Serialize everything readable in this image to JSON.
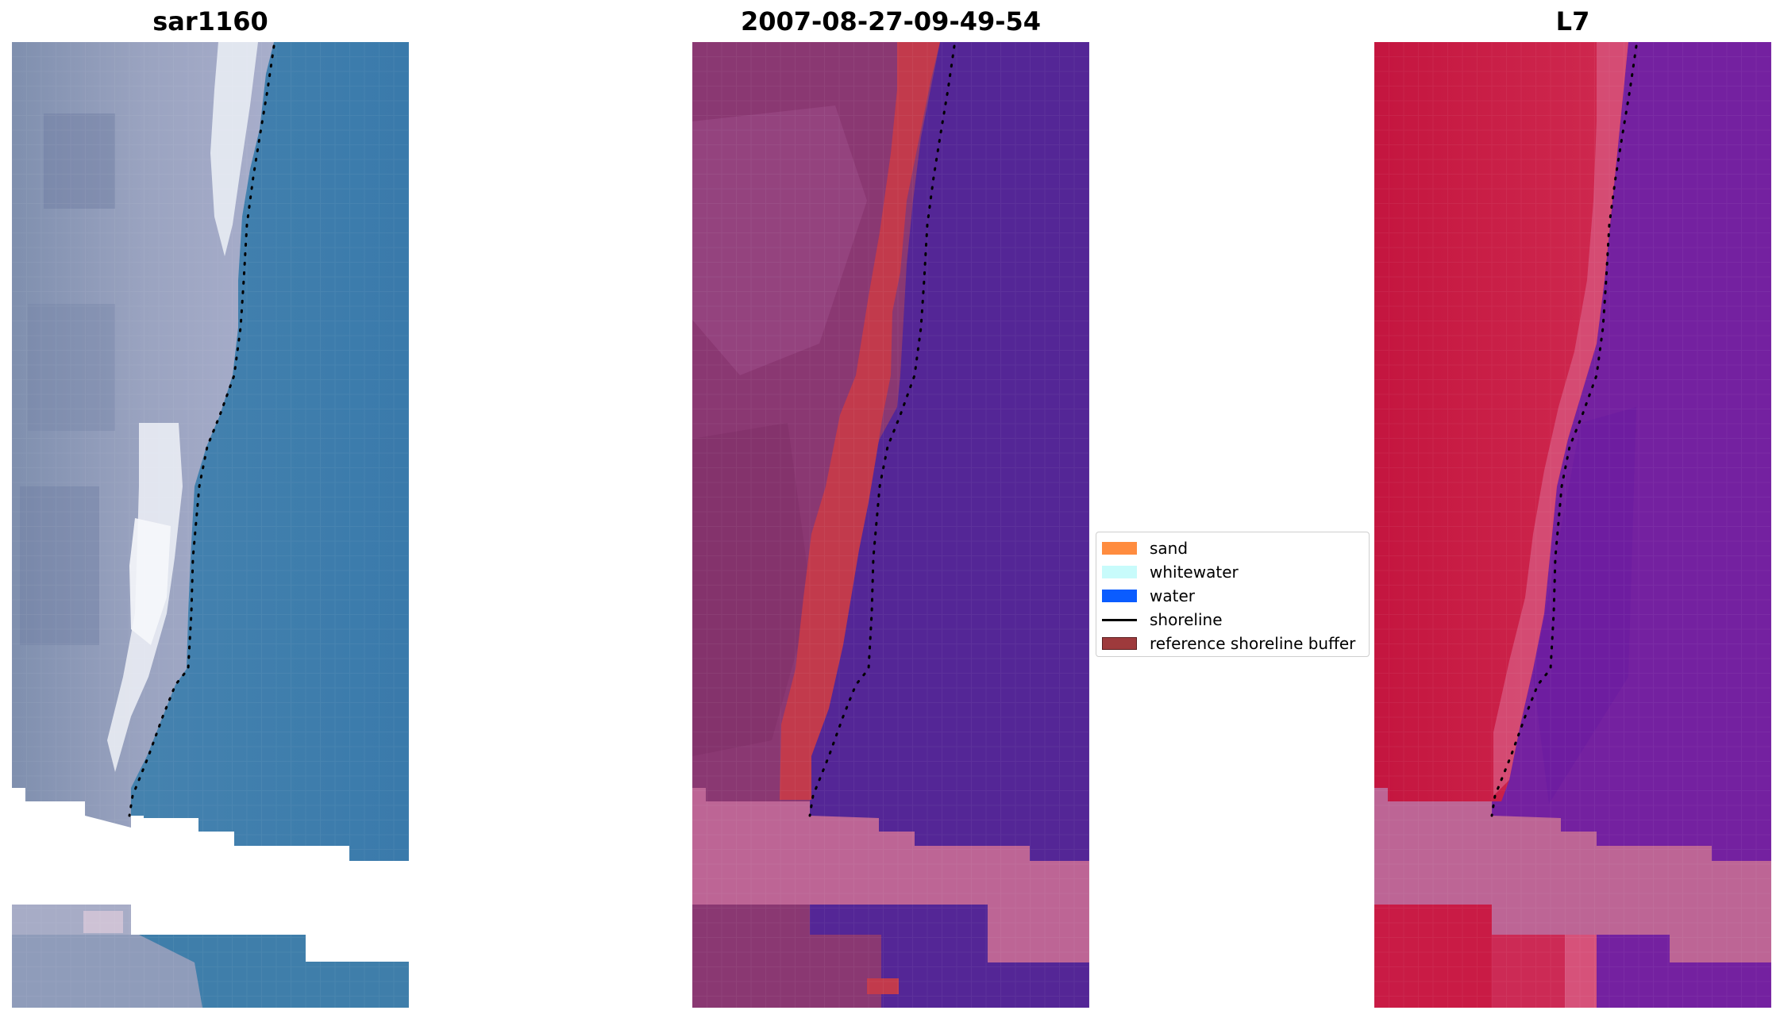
{
  "panels": [
    {
      "title": "sar1160"
    },
    {
      "title": "2007-08-27-09-49-54"
    },
    {
      "title": "L7"
    }
  ],
  "legend": {
    "items": [
      {
        "label": "sand",
        "color": "#ff8c3f",
        "kind": "patch"
      },
      {
        "label": "whitewater",
        "color": "#c8fbfb",
        "kind": "patch"
      },
      {
        "label": "water",
        "color": "#0a5cff",
        "kind": "patch"
      },
      {
        "label": "shoreline",
        "color": "#000000",
        "kind": "line"
      },
      {
        "label": "reference shoreline buffer",
        "color": "#9e3a3c",
        "kind": "patch"
      }
    ]
  },
  "colors": {
    "rgb_land": "#8e9ab8",
    "rgb_foam": "#e9eef5",
    "rgb_water": "#3d7fac",
    "class_land": "#8a3872",
    "class_buffer": "#c23a4c",
    "class_water": "#542696",
    "class_nodata": "#bd6595",
    "l7_land": "#cc1f48",
    "l7_water": "#7421a0",
    "l7_nodata": "#bd6595"
  }
}
